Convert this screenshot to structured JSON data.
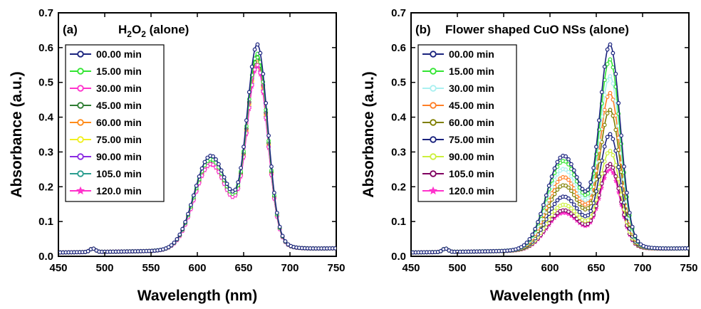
{
  "chart_data": [
    {
      "type": "line",
      "panel_label": "(a)",
      "title": "H",
      "title_sub": "2",
      "title_mid": "O",
      "title_sub2": "2",
      "title_tail": " (alone)",
      "xlabel": "Wavelength (nm)",
      "ylabel": "Absorbance (a.u.)",
      "xlim": [
        450,
        750
      ],
      "ylim": [
        0,
        0.7
      ],
      "xticks": [
        "450",
        "500",
        "550",
        "600",
        "650",
        "700",
        "750"
      ],
      "yticks": [
        "0.0",
        "0.1",
        "0.2",
        "0.3",
        "0.4",
        "0.5",
        "0.6",
        "0.7"
      ],
      "legend_placement": "top-left",
      "series": [
        {
          "name": "00.00 min",
          "color": "#1a237e",
          "marker": "circle",
          "peak": 0.6,
          "shoulder": 0.315
        },
        {
          "name": "15.00 min",
          "color": "#33e533",
          "marker": "circle",
          "peak": 0.575,
          "shoulder": 0.305
        },
        {
          "name": "30.00 min",
          "color": "#ff33cc",
          "marker": "circle",
          "peak": 0.545,
          "shoulder": 0.29
        },
        {
          "name": "45.00 min",
          "color": "#2e7d32",
          "marker": "circle",
          "peak": 0.565,
          "shoulder": 0.3
        },
        {
          "name": "60.00 min",
          "color": "#ff8c1a",
          "marker": "circle",
          "peak": 0.56,
          "shoulder": 0.298
        },
        {
          "name": "75.00 min",
          "color": "#f0f020",
          "marker": "circle",
          "peak": 0.555,
          "shoulder": 0.296
        },
        {
          "name": "90.00 min",
          "color": "#8a2be2",
          "marker": "circle",
          "peak": 0.55,
          "shoulder": 0.293
        },
        {
          "name": "105.0 min",
          "color": "#2a9d8f",
          "marker": "circle",
          "peak": 0.548,
          "shoulder": 0.292
        },
        {
          "name": "120.0 min",
          "color": "#ff33cc",
          "marker": "star",
          "peak": 0.54,
          "shoulder": 0.288
        }
      ]
    },
    {
      "type": "line",
      "panel_label": "(b)",
      "title": "Flower shaped CuO NSs (alone)",
      "xlabel": "Wavelength (nm)",
      "ylabel": "Absorbance (a.u.)",
      "xlim": [
        450,
        750
      ],
      "ylim": [
        0,
        0.7
      ],
      "xticks": [
        "450",
        "500",
        "550",
        "600",
        "650",
        "700",
        "750"
      ],
      "yticks": [
        "0.0",
        "0.1",
        "0.2",
        "0.3",
        "0.4",
        "0.5",
        "0.6",
        "0.7"
      ],
      "legend_placement": "top-left",
      "series": [
        {
          "name": "00.00 min",
          "color": "#1a237e",
          "marker": "circle",
          "peak": 0.6,
          "shoulder": 0.315
        },
        {
          "name": "15.00 min",
          "color": "#33e533",
          "marker": "circle",
          "peak": 0.56,
          "shoulder": 0.3
        },
        {
          "name": "30.00 min",
          "color": "#aaf0f0",
          "marker": "circle",
          "peak": 0.515,
          "shoulder": 0.275
        },
        {
          "name": "45.00 min",
          "color": "#ff7f27",
          "marker": "circle",
          "peak": 0.47,
          "shoulder": 0.25
        },
        {
          "name": "60.00 min",
          "color": "#808000",
          "marker": "circle",
          "peak": 0.425,
          "shoulder": 0.225
        },
        {
          "name": "75.00 min",
          "color": "#1a237e",
          "marker": "circle",
          "peak": 0.36,
          "shoulder": 0.19
        },
        {
          "name": "90.00 min",
          "color": "#ccf03c",
          "marker": "circle",
          "peak": 0.315,
          "shoulder": 0.165
        },
        {
          "name": "105.0 min",
          "color": "#800060",
          "marker": "circle",
          "peak": 0.28,
          "shoulder": 0.148
        },
        {
          "name": "120.0 min",
          "color": "#ff33cc",
          "marker": "star",
          "peak": 0.265,
          "shoulder": 0.14
        }
      ]
    }
  ]
}
